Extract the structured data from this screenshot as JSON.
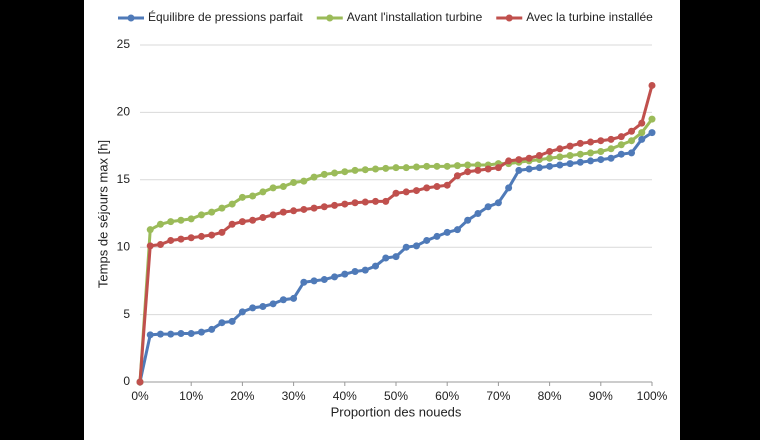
{
  "chart_data": {
    "type": "line",
    "y_label": "Temps de séjours max [h]",
    "x_label": "Proportion des noueds",
    "x": [
      0,
      2,
      4,
      6,
      8,
      10,
      12,
      14,
      16,
      18,
      20,
      22,
      24,
      26,
      28,
      30,
      32,
      34,
      36,
      38,
      40,
      42,
      44,
      46,
      48,
      50,
      52,
      54,
      56,
      58,
      60,
      62,
      64,
      66,
      68,
      70,
      72,
      74,
      76,
      78,
      80,
      82,
      84,
      86,
      88,
      90,
      92,
      94,
      96,
      98,
      100
    ],
    "series": [
      {
        "name": "Équilibre de pressions parfait",
        "color": "#4f7ab8",
        "values": [
          0,
          3.5,
          3.55,
          3.55,
          3.6,
          3.6,
          3.7,
          3.9,
          4.4,
          4.5,
          5.2,
          5.5,
          5.6,
          5.8,
          6.1,
          6.2,
          7.4,
          7.5,
          7.6,
          7.8,
          8.0,
          8.2,
          8.3,
          8.6,
          9.2,
          9.3,
          10.0,
          10.1,
          10.5,
          10.8,
          11.1,
          11.3,
          12.0,
          12.5,
          13.0,
          13.3,
          14.4,
          15.7,
          15.8,
          15.9,
          16.0,
          16.1,
          16.2,
          16.3,
          16.4,
          16.5,
          16.6,
          16.9,
          17.0,
          18.0,
          18.5
        ]
      },
      {
        "name": "Avant l'installation turbine",
        "color": "#9bbb59",
        "values": [
          0,
          11.3,
          11.7,
          11.9,
          12.0,
          12.1,
          12.4,
          12.6,
          12.9,
          13.2,
          13.7,
          13.8,
          14.1,
          14.4,
          14.5,
          14.8,
          14.9,
          15.2,
          15.4,
          15.5,
          15.6,
          15.7,
          15.75,
          15.8,
          15.85,
          15.9,
          15.9,
          15.95,
          16.0,
          16.0,
          16.0,
          16.05,
          16.1,
          16.1,
          16.1,
          16.2,
          16.2,
          16.3,
          16.4,
          16.5,
          16.6,
          16.7,
          16.8,
          16.9,
          17.0,
          17.1,
          17.3,
          17.6,
          17.9,
          18.5,
          19.5
        ]
      },
      {
        "name": "Avec la turbine installée",
        "color": "#c0504d",
        "values": [
          0,
          10.1,
          10.2,
          10.5,
          10.6,
          10.7,
          10.8,
          10.9,
          11.1,
          11.7,
          11.9,
          12.0,
          12.2,
          12.4,
          12.6,
          12.7,
          12.8,
          12.9,
          13.0,
          13.1,
          13.2,
          13.3,
          13.35,
          13.4,
          13.4,
          14.0,
          14.1,
          14.2,
          14.4,
          14.5,
          14.6,
          15.3,
          15.6,
          15.7,
          15.8,
          15.9,
          16.4,
          16.5,
          16.6,
          16.8,
          17.1,
          17.3,
          17.5,
          17.7,
          17.8,
          17.9,
          18.0,
          18.2,
          18.6,
          19.2,
          22.0
        ]
      }
    ],
    "xlim": [
      0,
      100
    ],
    "xticks": [
      {
        "value": 0,
        "label": "0%"
      },
      {
        "value": 10,
        "label": "10%"
      },
      {
        "value": 20,
        "label": "20%"
      },
      {
        "value": 30,
        "label": "30%"
      },
      {
        "value": 40,
        "label": "40%"
      },
      {
        "value": 50,
        "label": "50%"
      },
      {
        "value": 60,
        "label": "60%"
      },
      {
        "value": 70,
        "label": "70%"
      },
      {
        "value": 80,
        "label": "80%"
      },
      {
        "value": 90,
        "label": "90%"
      },
      {
        "value": 100,
        "label": "100%"
      }
    ],
    "ylim": [
      0,
      25
    ],
    "yticks": [
      0,
      5,
      10,
      15,
      20,
      25
    ],
    "grid": true,
    "legend": "top"
  }
}
